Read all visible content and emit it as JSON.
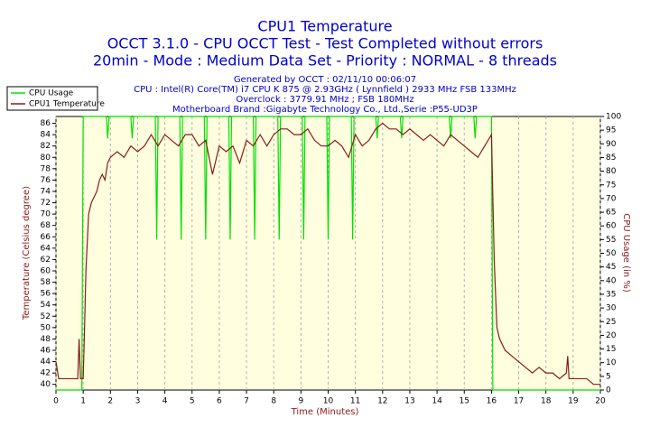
{
  "chart_data": {
    "type": "line",
    "title": "CPU1 Temperature",
    "subtitle": [
      "OCCT 3.1.0 - CPU OCCT Test - Test Completed without errors",
      "20min - Mode : Medium Data Set - Priority : NORMAL - 8 threads"
    ],
    "info": [
      "Generated by OCCT : 02/11/10 00:06:07",
      "CPU : Intel(R) Core(TM) i7 CPU K 875 @ 2.93GHz ( Lynnfield ) 2933 MHz FSB 133MHz",
      "Overclock : 3779.91 MHz ; FSB 180MHz",
      "Motherboard Brand :Gigabyte Technology Co., Ltd.,Serie :P55-UD3P"
    ],
    "xlabel": "Time (Minutes)",
    "ylabel": "Temperature (Celsius degree)",
    "y2label": "CPU Usage (in %)",
    "xlim": [
      0,
      20
    ],
    "xticks": [
      0,
      1,
      2,
      3,
      4,
      5,
      6,
      7,
      8,
      9,
      10,
      11,
      12,
      13,
      14,
      15,
      16,
      17,
      18,
      19,
      20
    ],
    "ylim": [
      39,
      87.2
    ],
    "yticks": [
      40,
      42,
      44,
      46,
      48,
      50,
      52,
      54,
      56,
      58,
      60,
      62,
      64,
      66,
      68,
      70,
      72,
      74,
      76,
      78,
      80,
      82,
      84,
      86
    ],
    "y2lim": [
      0,
      100
    ],
    "y2ticks": [
      0,
      5,
      10,
      15,
      20,
      25,
      30,
      35,
      40,
      45,
      50,
      55,
      60,
      65,
      70,
      75,
      80,
      85,
      90,
      95,
      100
    ],
    "grid": "x",
    "legend": "upper left",
    "series": [
      {
        "name": "CPU Usage",
        "color": "#00e000",
        "axis": "y2",
        "x": [
          0,
          0.95,
          1.0,
          1.85,
          1.9,
          1.95,
          2.75,
          2.8,
          2.85,
          3.65,
          3.7,
          3.75,
          4.55,
          4.6,
          4.65,
          5.45,
          5.5,
          5.55,
          6.35,
          6.4,
          6.45,
          7.25,
          7.3,
          7.35,
          8.15,
          8.2,
          8.25,
          9.05,
          9.1,
          9.15,
          9.95,
          10,
          10.05,
          10.85,
          10.9,
          10.95,
          11.75,
          11.8,
          11.85,
          12.65,
          12.7,
          12.75,
          14.45,
          14.5,
          14.55,
          15.35,
          15.4,
          15.45,
          16.0,
          16.05,
          20
        ],
        "values": [
          0,
          0,
          100,
          100,
          92,
          100,
          100,
          92,
          100,
          100,
          55,
          100,
          100,
          55,
          100,
          100,
          55,
          100,
          100,
          55,
          100,
          100,
          55,
          100,
          100,
          55,
          100,
          100,
          55,
          100,
          100,
          55,
          100,
          100,
          55,
          100,
          100,
          92,
          100,
          100,
          92,
          100,
          100,
          92,
          100,
          100,
          92,
          100,
          100,
          0,
          0
        ]
      },
      {
        "name": "CPU1 Temperature",
        "color": "#8b1a1a",
        "x": [
          0,
          0.1,
          0.5,
          0.8,
          0.85,
          0.9,
          1.0,
          1.05,
          1.1,
          1.2,
          1.3,
          1.4,
          1.5,
          1.6,
          1.7,
          1.8,
          1.9,
          2.0,
          2.25,
          2.5,
          2.75,
          3.0,
          3.25,
          3.5,
          3.75,
          4.0,
          4.25,
          4.5,
          4.75,
          5.0,
          5.25,
          5.5,
          5.75,
          6.0,
          6.25,
          6.5,
          6.75,
          7.0,
          7.25,
          7.5,
          7.75,
          8.0,
          8.25,
          8.5,
          8.75,
          9.0,
          9.25,
          9.5,
          9.75,
          10.0,
          10.25,
          10.5,
          10.75,
          11.0,
          11.25,
          11.5,
          11.75,
          12.0,
          12.25,
          12.5,
          12.75,
          13.0,
          13.25,
          13.5,
          13.75,
          14.0,
          14.25,
          14.5,
          14.75,
          15.0,
          15.25,
          15.5,
          15.75,
          16.0,
          16.1,
          16.2,
          16.3,
          16.5,
          16.75,
          17.0,
          17.25,
          17.5,
          17.75,
          18.0,
          18.25,
          18.5,
          18.75,
          18.8,
          18.85,
          19.0,
          19.5,
          19.75,
          20
        ],
        "values": [
          44,
          41,
          41,
          41,
          48,
          41,
          41,
          50,
          60,
          70,
          72,
          73,
          74,
          76,
          77,
          76,
          79,
          80,
          81,
          80,
          82,
          81,
          82,
          84,
          82,
          84,
          83,
          82,
          84,
          84,
          82,
          83,
          77,
          82,
          81,
          82,
          79,
          83,
          82,
          84,
          82,
          84,
          85,
          85,
          84,
          84,
          85,
          83,
          82,
          82,
          83,
          82,
          80,
          84,
          82,
          83,
          85,
          86,
          85,
          85,
          84,
          85,
          84,
          83,
          84,
          83,
          82,
          84,
          83,
          82,
          81,
          80,
          82,
          84,
          62,
          50,
          48,
          46,
          45,
          44,
          43,
          42,
          43,
          42,
          42,
          41,
          42,
          45,
          41,
          41,
          41,
          40,
          40
        ]
      }
    ]
  }
}
